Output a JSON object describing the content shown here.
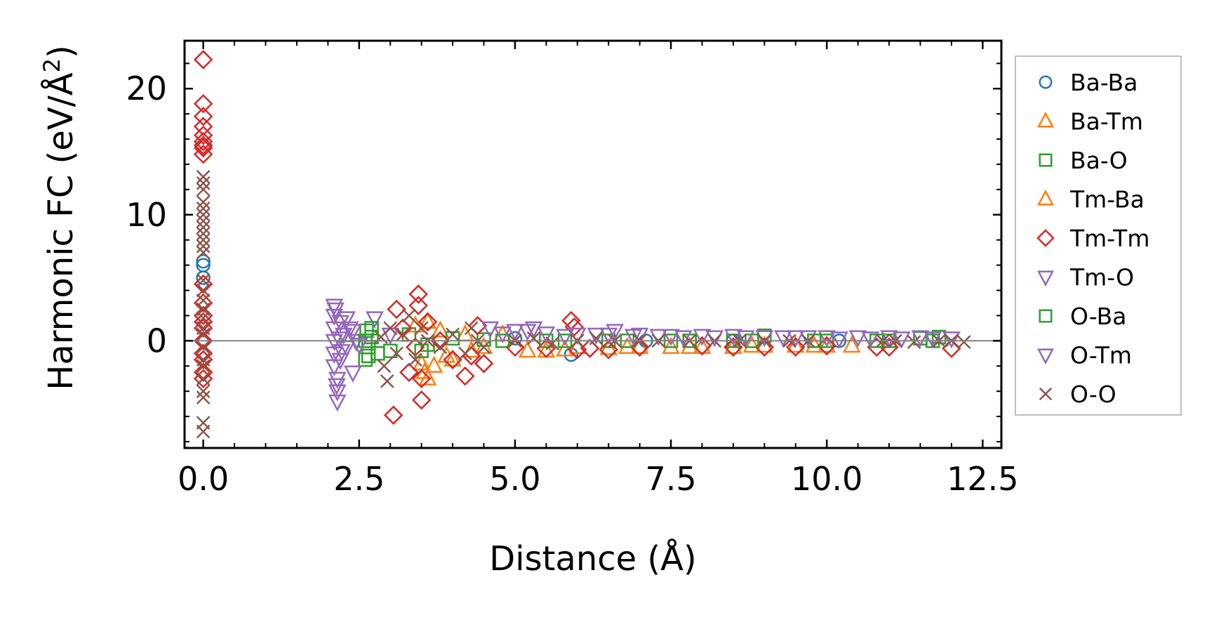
{
  "chart_data": {
    "type": "scatter",
    "title": "",
    "xlabel": "Distance (Å)",
    "ylabel_main": "Harmonic FC (eV/Å",
    "ylabel_sup": "2",
    "ylabel_close": ")",
    "xlim": [
      -0.3,
      12.8
    ],
    "ylim": [
      -8.5,
      23.8
    ],
    "xticks": [
      0.0,
      2.5,
      5.0,
      7.5,
      10.0,
      12.5
    ],
    "xtick_labels": [
      "0.0",
      "2.5",
      "5.0",
      "7.5",
      "10.0",
      "12.5"
    ],
    "yticks": [
      0,
      10,
      20
    ],
    "ytick_labels": [
      "0",
      "10",
      "20"
    ],
    "zero_line": true,
    "legend_position": "outside-right",
    "series": [
      {
        "name": "Ba-Ba",
        "marker": "circle",
        "color": "#1f77b4",
        "points": [
          [
            0.0,
            6.3
          ],
          [
            0.0,
            6.0
          ],
          [
            0.0,
            5.0
          ],
          [
            5.9,
            -1.1
          ],
          [
            5.0,
            0.2
          ],
          [
            7.1,
            0.0
          ],
          [
            8.5,
            0.0
          ],
          [
            10.2,
            0.0
          ]
        ]
      },
      {
        "name": "Ba-Tm",
        "marker": "triangle-up",
        "color": "#ff7f0e",
        "points": [
          [
            3.5,
            -1.8
          ],
          [
            3.55,
            -2.5
          ],
          [
            3.6,
            -3.0
          ],
          [
            3.7,
            -2.0
          ],
          [
            3.8,
            0.8
          ],
          [
            4.0,
            -1.5
          ],
          [
            4.2,
            0.5
          ],
          [
            4.5,
            -0.5
          ],
          [
            5.2,
            -0.8
          ],
          [
            5.5,
            -0.8
          ],
          [
            6.0,
            -0.5
          ],
          [
            6.5,
            -0.6
          ],
          [
            7.0,
            -0.5
          ],
          [
            7.5,
            -0.5
          ],
          [
            8.0,
            -0.5
          ],
          [
            8.5,
            -0.5
          ],
          [
            9.0,
            -0.4
          ],
          [
            9.5,
            -0.4
          ],
          [
            10.0,
            -0.4
          ],
          [
            10.4,
            -0.4
          ]
        ]
      },
      {
        "name": "Ba-O",
        "marker": "square",
        "color": "#2ca02c",
        "points": [
          [
            2.6,
            -1.5
          ],
          [
            2.62,
            0.8
          ],
          [
            2.65,
            -0.5
          ],
          [
            2.7,
            0.3
          ],
          [
            2.8,
            -1.0
          ],
          [
            3.0,
            -0.8
          ],
          [
            3.3,
            0.5
          ],
          [
            3.6,
            -0.3
          ],
          [
            4.0,
            0.2
          ],
          [
            4.5,
            0.1
          ],
          [
            5.5,
            0.0
          ],
          [
            6.5,
            0.0
          ],
          [
            7.5,
            0.0
          ],
          [
            8.5,
            0.0
          ],
          [
            9.0,
            0.4
          ],
          [
            10.0,
            0.0
          ],
          [
            11.0,
            0.0
          ],
          [
            11.5,
            0.2
          ],
          [
            11.8,
            0.3
          ]
        ]
      },
      {
        "name": "Tm-Ba",
        "marker": "triangle-up",
        "color": "#ff7f0e",
        "points": [
          [
            3.4,
            1.2
          ],
          [
            3.6,
            1.5
          ],
          [
            3.9,
            -1.2
          ],
          [
            4.3,
            -0.8
          ],
          [
            4.8,
            0.5
          ],
          [
            5.8,
            -0.7
          ],
          [
            6.8,
            -0.5
          ],
          [
            7.8,
            -0.5
          ],
          [
            8.8,
            -0.4
          ],
          [
            9.8,
            -0.4
          ]
        ]
      },
      {
        "name": "Tm-Tm",
        "marker": "diamond",
        "color": "#d62728",
        "points": [
          [
            0.0,
            22.3
          ],
          [
            0.0,
            18.8
          ],
          [
            0.0,
            17.8
          ],
          [
            0.0,
            17.0
          ],
          [
            0.0,
            16.3
          ],
          [
            0.0,
            15.8
          ],
          [
            0.0,
            15.5
          ],
          [
            0.0,
            15.3
          ],
          [
            0.0,
            14.8
          ],
          [
            0.0,
            4.5
          ],
          [
            0.0,
            3.0
          ],
          [
            0.0,
            2.0
          ],
          [
            0.0,
            1.5
          ],
          [
            0.0,
            1.0
          ],
          [
            0.0,
            0.0
          ],
          [
            0.0,
            -1.0
          ],
          [
            0.0,
            -1.5
          ],
          [
            0.0,
            -2.5
          ],
          [
            0.0,
            -3.0
          ],
          [
            3.05,
            -5.9
          ],
          [
            3.1,
            2.5
          ],
          [
            3.2,
            1.0
          ],
          [
            3.3,
            -2.5
          ],
          [
            3.4,
            -0.5
          ],
          [
            3.45,
            3.7
          ],
          [
            3.45,
            2.8
          ],
          [
            3.5,
            -4.7
          ],
          [
            3.5,
            -3.0
          ],
          [
            3.6,
            1.5
          ],
          [
            3.8,
            0.0
          ],
          [
            4.0,
            -1.5
          ],
          [
            4.2,
            -2.8
          ],
          [
            4.3,
            -1.2
          ],
          [
            4.4,
            1.2
          ],
          [
            4.5,
            -1.8
          ],
          [
            5.0,
            -0.5
          ],
          [
            5.5,
            -0.6
          ],
          [
            5.9,
            1.6
          ],
          [
            5.95,
            1.1
          ],
          [
            6.0,
            -0.7
          ],
          [
            6.2,
            -0.6
          ],
          [
            6.5,
            -0.7
          ],
          [
            7.0,
            -0.5
          ],
          [
            8.0,
            -0.4
          ],
          [
            8.5,
            -0.5
          ],
          [
            9.0,
            -0.5
          ],
          [
            9.5,
            -0.5
          ],
          [
            10.0,
            -0.4
          ],
          [
            10.8,
            -0.5
          ],
          [
            11.0,
            -0.5
          ],
          [
            12.0,
            -0.6
          ]
        ]
      },
      {
        "name": "Tm-O",
        "marker": "triangle-down",
        "color": "#9467bd",
        "points": [
          [
            2.1,
            2.8
          ],
          [
            2.1,
            2.0
          ],
          [
            2.1,
            1.0
          ],
          [
            2.1,
            0.0
          ],
          [
            2.1,
            -1.0
          ],
          [
            2.1,
            -2.0
          ],
          [
            2.15,
            -3.0
          ],
          [
            2.15,
            -4.0
          ],
          [
            2.15,
            -4.8
          ],
          [
            2.2,
            1.5
          ],
          [
            2.2,
            -1.5
          ],
          [
            2.25,
            0.5
          ],
          [
            2.3,
            -0.5
          ],
          [
            2.35,
            1.0
          ],
          [
            2.4,
            -2.5
          ],
          [
            2.45,
            0.0
          ],
          [
            2.75,
            1.8
          ],
          [
            3.0,
            0.5
          ],
          [
            4.6,
            1.0
          ],
          [
            5.0,
            0.8
          ],
          [
            5.3,
            1.0
          ],
          [
            5.5,
            0.6
          ],
          [
            6.0,
            0.5
          ],
          [
            6.5,
            0.5
          ],
          [
            6.6,
            0.8
          ],
          [
            7.0,
            0.5
          ],
          [
            7.5,
            0.4
          ],
          [
            8.0,
            0.4
          ],
          [
            8.5,
            0.4
          ],
          [
            9.0,
            0.3
          ],
          [
            9.5,
            0.3
          ],
          [
            10.0,
            0.3
          ],
          [
            10.5,
            0.3
          ],
          [
            11.0,
            0.3
          ],
          [
            11.5,
            0.3
          ],
          [
            12.0,
            0.2
          ]
        ]
      },
      {
        "name": "O-Ba",
        "marker": "square",
        "color": "#2ca02c",
        "points": [
          [
            2.6,
            0.0
          ],
          [
            2.65,
            -1.2
          ],
          [
            2.7,
            1.0
          ],
          [
            3.5,
            -0.8
          ],
          [
            4.8,
            0.0
          ],
          [
            5.8,
            0.0
          ],
          [
            6.8,
            0.0
          ],
          [
            7.8,
            0.0
          ],
          [
            8.8,
            0.0
          ],
          [
            9.8,
            0.0
          ],
          [
            10.8,
            0.0
          ],
          [
            11.7,
            0.0
          ]
        ]
      },
      {
        "name": "O-Tm",
        "marker": "triangle-down",
        "color": "#9467bd",
        "points": [
          [
            2.12,
            2.5
          ],
          [
            2.14,
            -3.5
          ],
          [
            2.18,
            0.2
          ],
          [
            2.22,
            -0.8
          ],
          [
            2.3,
            1.8
          ],
          [
            2.4,
            0.8
          ],
          [
            2.5,
            -0.3
          ],
          [
            4.8,
            0.6
          ],
          [
            5.2,
            0.8
          ],
          [
            5.8,
            0.4
          ],
          [
            6.3,
            0.5
          ],
          [
            6.9,
            0.4
          ],
          [
            7.3,
            0.4
          ],
          [
            7.7,
            0.3
          ],
          [
            8.2,
            0.3
          ],
          [
            8.7,
            0.3
          ],
          [
            9.3,
            0.3
          ],
          [
            9.7,
            0.3
          ],
          [
            10.2,
            0.2
          ],
          [
            10.7,
            0.2
          ],
          [
            11.2,
            0.2
          ],
          [
            11.7,
            0.2
          ]
        ]
      },
      {
        "name": "O-O",
        "marker": "x",
        "color": "#8c564b",
        "points": [
          [
            0.0,
            13.0
          ],
          [
            0.0,
            12.5
          ],
          [
            0.0,
            12.0
          ],
          [
            0.0,
            11.0
          ],
          [
            0.0,
            10.5
          ],
          [
            0.0,
            10.0
          ],
          [
            0.0,
            9.5
          ],
          [
            0.0,
            9.0
          ],
          [
            0.0,
            8.5
          ],
          [
            0.0,
            8.0
          ],
          [
            0.0,
            7.5
          ],
          [
            0.0,
            7.0
          ],
          [
            0.0,
            4.8
          ],
          [
            0.0,
            4.0
          ],
          [
            0.0,
            3.2
          ],
          [
            0.0,
            2.5
          ],
          [
            0.0,
            1.8
          ],
          [
            0.0,
            1.0
          ],
          [
            0.0,
            0.5
          ],
          [
            0.0,
            -0.5
          ],
          [
            0.0,
            -1.5
          ],
          [
            0.0,
            -2.0
          ],
          [
            0.0,
            -3.0
          ],
          [
            0.0,
            -4.0
          ],
          [
            0.0,
            -4.5
          ],
          [
            0.0,
            -6.5
          ],
          [
            0.0,
            -7.2
          ],
          [
            2.85,
            0.3
          ],
          [
            2.9,
            -2.0
          ],
          [
            2.95,
            -3.2
          ],
          [
            3.0,
            1.0
          ],
          [
            3.1,
            -1.0
          ],
          [
            3.2,
            0.5
          ],
          [
            3.3,
            2.0
          ],
          [
            3.4,
            -1.5
          ],
          [
            3.5,
            1.0
          ],
          [
            3.6,
            0.0
          ],
          [
            3.8,
            -0.5
          ],
          [
            4.0,
            0.5
          ],
          [
            4.2,
            -1.0
          ],
          [
            4.3,
            1.0
          ],
          [
            4.4,
            0.0
          ],
          [
            4.5,
            -0.5
          ],
          [
            5.0,
            0.0
          ],
          [
            5.3,
            0.2
          ],
          [
            5.6,
            -0.2
          ],
          [
            6.0,
            0.0
          ],
          [
            6.3,
            0.2
          ],
          [
            6.6,
            0.0
          ],
          [
            7.0,
            0.0
          ],
          [
            7.3,
            0.0
          ],
          [
            7.8,
            0.0
          ],
          [
            8.2,
            0.0
          ],
          [
            8.6,
            0.0
          ],
          [
            9.0,
            0.0
          ],
          [
            9.4,
            0.0
          ],
          [
            9.7,
            0.0
          ],
          [
            10.9,
            0.0
          ],
          [
            11.1,
            0.0
          ],
          [
            11.4,
            -0.1
          ],
          [
            11.8,
            0.0
          ],
          [
            12.0,
            0.0
          ],
          [
            12.2,
            -0.1
          ]
        ]
      }
    ]
  }
}
